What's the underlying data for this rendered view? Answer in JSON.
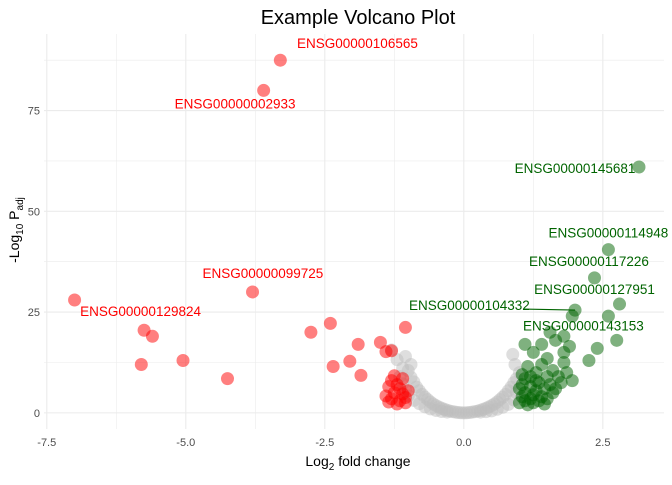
{
  "chart_data": {
    "type": "scatter",
    "title": "Example Volcano Plot",
    "xlabel": {
      "main": "Log",
      "sub": "2",
      "rest": " fold change"
    },
    "ylabel": {
      "pre": "-Log",
      "sub1": "10",
      "mid": " P",
      "sub2": "adj"
    },
    "xlim": [
      -7.55,
      3.6
    ],
    "ylim": [
      -4,
      94
    ],
    "x_ticks": [
      -7.5,
      -5.0,
      -2.5,
      0.0,
      2.5
    ],
    "x_tick_labels": [
      "-7.5",
      "-5.0",
      "-2.5",
      "0.0",
      "2.5"
    ],
    "y_ticks": [
      0,
      25,
      50,
      75
    ],
    "y_tick_labels": [
      "0",
      "25",
      "50",
      "75"
    ],
    "grid": true,
    "legend": "none",
    "colors": {
      "down": "#ff0000",
      "up": "#006400",
      "ns": "#bebebe",
      "grid": "#ebebeb"
    },
    "series": [
      {
        "color_key": "ns",
        "values": [
          [
            -1.3,
            15.6
          ],
          [
            -1.2,
            13.2
          ],
          [
            -1.1,
            11.1
          ],
          [
            -1.0,
            10.5
          ],
          [
            -0.95,
            8.8
          ],
          [
            -0.9,
            7.7
          ],
          [
            -0.85,
            6.4
          ],
          [
            -0.8,
            5.5
          ],
          [
            -0.75,
            4.6
          ],
          [
            -0.7,
            3.9
          ],
          [
            -0.65,
            3.3
          ],
          [
            -0.6,
            2.7
          ],
          [
            -0.55,
            2.2
          ],
          [
            -0.5,
            1.8
          ],
          [
            -0.45,
            1.45
          ],
          [
            -0.4,
            1.15
          ],
          [
            -0.35,
            0.9
          ],
          [
            -0.3,
            0.65
          ],
          [
            -0.25,
            0.45
          ],
          [
            -0.2,
            0.3
          ],
          [
            -0.15,
            0.18
          ],
          [
            -0.1,
            0.08
          ],
          [
            -0.05,
            0.02
          ],
          [
            0.0,
            0.0
          ],
          [
            0.05,
            0.02
          ],
          [
            0.1,
            0.08
          ],
          [
            0.15,
            0.18
          ],
          [
            0.2,
            0.3
          ],
          [
            0.25,
            0.45
          ],
          [
            0.3,
            0.65
          ],
          [
            0.35,
            0.9
          ],
          [
            0.4,
            1.15
          ],
          [
            0.45,
            1.45
          ],
          [
            0.5,
            1.8
          ],
          [
            0.55,
            2.2
          ],
          [
            0.6,
            2.7
          ],
          [
            0.65,
            3.3
          ],
          [
            0.7,
            3.9
          ],
          [
            0.75,
            4.6
          ],
          [
            0.8,
            5.5
          ],
          [
            0.85,
            6.4
          ],
          [
            0.9,
            7.5
          ],
          [
            0.95,
            8.5
          ],
          [
            1.0,
            10.0
          ],
          [
            0.92,
            12.0
          ],
          [
            0.88,
            14.5
          ],
          [
            0.95,
            5.0
          ],
          [
            0.9,
            3.2
          ],
          [
            0.8,
            2.1
          ],
          [
            0.7,
            1.4
          ],
          [
            0.6,
            0.9
          ],
          [
            0.5,
            0.5
          ],
          [
            0.4,
            0.3
          ],
          [
            0.3,
            0.2
          ],
          [
            -0.3,
            0.2
          ],
          [
            -0.4,
            0.35
          ],
          [
            -0.5,
            0.6
          ],
          [
            -0.6,
            1.0
          ],
          [
            -0.7,
            1.5
          ],
          [
            -0.8,
            2.3
          ],
          [
            -0.9,
            3.1
          ],
          [
            -1.0,
            4.2
          ],
          [
            -1.05,
            5.6
          ],
          [
            -1.1,
            7.2
          ],
          [
            -1.15,
            9.0
          ],
          [
            -0.95,
            12.0
          ],
          [
            -1.05,
            14.0
          ]
        ]
      },
      {
        "color_key": "down",
        "values": [
          [
            -3.3,
            87.5
          ],
          [
            -3.6,
            80
          ],
          [
            -3.8,
            30
          ],
          [
            -7.0,
            28
          ],
          [
            -5.8,
            12
          ],
          [
            -5.75,
            20.5
          ],
          [
            -5.6,
            19
          ],
          [
            -5.05,
            13
          ],
          [
            -4.25,
            8.5
          ],
          [
            -2.75,
            20
          ],
          [
            -2.4,
            22.2
          ],
          [
            -2.35,
            11.5
          ],
          [
            -2.05,
            12.8
          ],
          [
            -1.9,
            17
          ],
          [
            -1.85,
            9.3
          ],
          [
            -1.5,
            17.5
          ],
          [
            -1.4,
            15.2
          ],
          [
            -1.3,
            15.4
          ],
          [
            -1.05,
            21.2
          ],
          [
            -1.25,
            9.2
          ],
          [
            -1.3,
            8
          ],
          [
            -1.2,
            7
          ],
          [
            -1.35,
            6.5
          ],
          [
            -1.15,
            6
          ],
          [
            -1.25,
            5
          ],
          [
            -1.1,
            4.7
          ],
          [
            -1.4,
            4.2
          ],
          [
            -1.05,
            3.8
          ],
          [
            -1.3,
            3.5
          ],
          [
            -1.15,
            3
          ],
          [
            -1.05,
            2.5
          ],
          [
            -1.2,
            2.2
          ],
          [
            -1.35,
            2.7
          ],
          [
            -1.0,
            5.5
          ],
          [
            -1.1,
            8.5
          ]
        ]
      },
      {
        "color_key": "up",
        "values": [
          [
            3.15,
            61
          ],
          [
            2.6,
            40.5
          ],
          [
            2.35,
            33.5
          ],
          [
            2.8,
            27
          ],
          [
            2.0,
            25.5
          ],
          [
            1.95,
            24
          ],
          [
            2.6,
            24
          ],
          [
            1.8,
            19
          ],
          [
            2.75,
            18
          ],
          [
            2.4,
            16
          ],
          [
            1.9,
            16.5
          ],
          [
            1.55,
            20
          ],
          [
            1.65,
            18
          ],
          [
            1.4,
            17
          ],
          [
            1.8,
            15
          ],
          [
            2.25,
            13
          ],
          [
            1.1,
            17
          ],
          [
            1.25,
            15
          ],
          [
            1.5,
            13.5
          ],
          [
            1.8,
            12.5
          ],
          [
            1.15,
            11.5
          ],
          [
            1.85,
            10
          ],
          [
            1.95,
            8
          ],
          [
            1.4,
            12
          ],
          [
            1.6,
            10.5
          ],
          [
            1.3,
            10
          ],
          [
            1.5,
            9
          ],
          [
            1.2,
            9
          ],
          [
            1.1,
            8.5
          ],
          [
            1.7,
            9
          ],
          [
            1.05,
            7
          ],
          [
            1.35,
            7.5
          ],
          [
            1.55,
            7
          ],
          [
            1.2,
            6.5
          ],
          [
            1.45,
            6
          ],
          [
            1.0,
            6
          ],
          [
            1.3,
            5.5
          ],
          [
            1.1,
            5
          ],
          [
            1.6,
            5
          ],
          [
            1.25,
            4.5
          ],
          [
            1.05,
            4
          ],
          [
            1.4,
            4
          ],
          [
            1.2,
            3.5
          ],
          [
            1.5,
            3.5
          ],
          [
            1.1,
            3
          ],
          [
            1.35,
            3
          ],
          [
            1.0,
            2.5
          ],
          [
            1.25,
            2.5
          ],
          [
            1.65,
            6
          ],
          [
            1.75,
            7.5
          ],
          [
            1.45,
            2.2
          ],
          [
            1.15,
            2.0
          ],
          [
            1.3,
            8.0
          ],
          [
            1.05,
            9.5
          ]
        ]
      }
    ],
    "annotations": [
      {
        "text": "ENSG00000106565",
        "x": -3.3,
        "y": 87.5,
        "tx": -3.0,
        "ty": 90.5,
        "color_key": "down",
        "anchor": "start",
        "leader": false
      },
      {
        "text": "ENSG00000002933",
        "x": -3.6,
        "y": 80,
        "tx": -5.2,
        "ty": 75.5,
        "color_key": "down",
        "anchor": "start",
        "leader": false
      },
      {
        "text": "ENSG00000099725",
        "x": -3.8,
        "y": 30,
        "tx": -4.7,
        "ty": 33.5,
        "color_key": "down",
        "anchor": "start",
        "leader": false
      },
      {
        "text": "ENSG00000129824",
        "x": -7.0,
        "y": 28,
        "tx": -6.9,
        "ty": 24,
        "color_key": "down",
        "anchor": "start",
        "leader": false
      },
      {
        "text": "ENSG00000145681",
        "x": 3.15,
        "y": 61,
        "tx": 2.0,
        "ty": 59.5,
        "color_key": "up",
        "anchor": "middle",
        "leader": false
      },
      {
        "text": "ENSG00000114948",
        "x": 2.6,
        "y": 40.5,
        "tx": 2.6,
        "ty": 43.5,
        "color_key": "up",
        "anchor": "middle",
        "leader": false
      },
      {
        "text": "ENSG00000117226",
        "x": 2.35,
        "y": 33.5,
        "tx": 2.25,
        "ty": 36.5,
        "color_key": "up",
        "anchor": "middle",
        "leader": false
      },
      {
        "text": "ENSG00000127951",
        "x": 2.8,
        "y": 27,
        "tx": 2.35,
        "ty": 29.5,
        "color_key": "up",
        "anchor": "middle",
        "leader": false
      },
      {
        "text": "ENSG00000104332",
        "x": 2.0,
        "y": 25.5,
        "tx": 0.1,
        "ty": 25.5,
        "color_key": "up",
        "anchor": "middle",
        "leader": true
      },
      {
        "text": "ENSG00000143153",
        "x": 1.95,
        "y": 24,
        "tx": 2.15,
        "ty": 20.5,
        "color_key": "up",
        "anchor": "middle",
        "leader": false
      }
    ]
  }
}
